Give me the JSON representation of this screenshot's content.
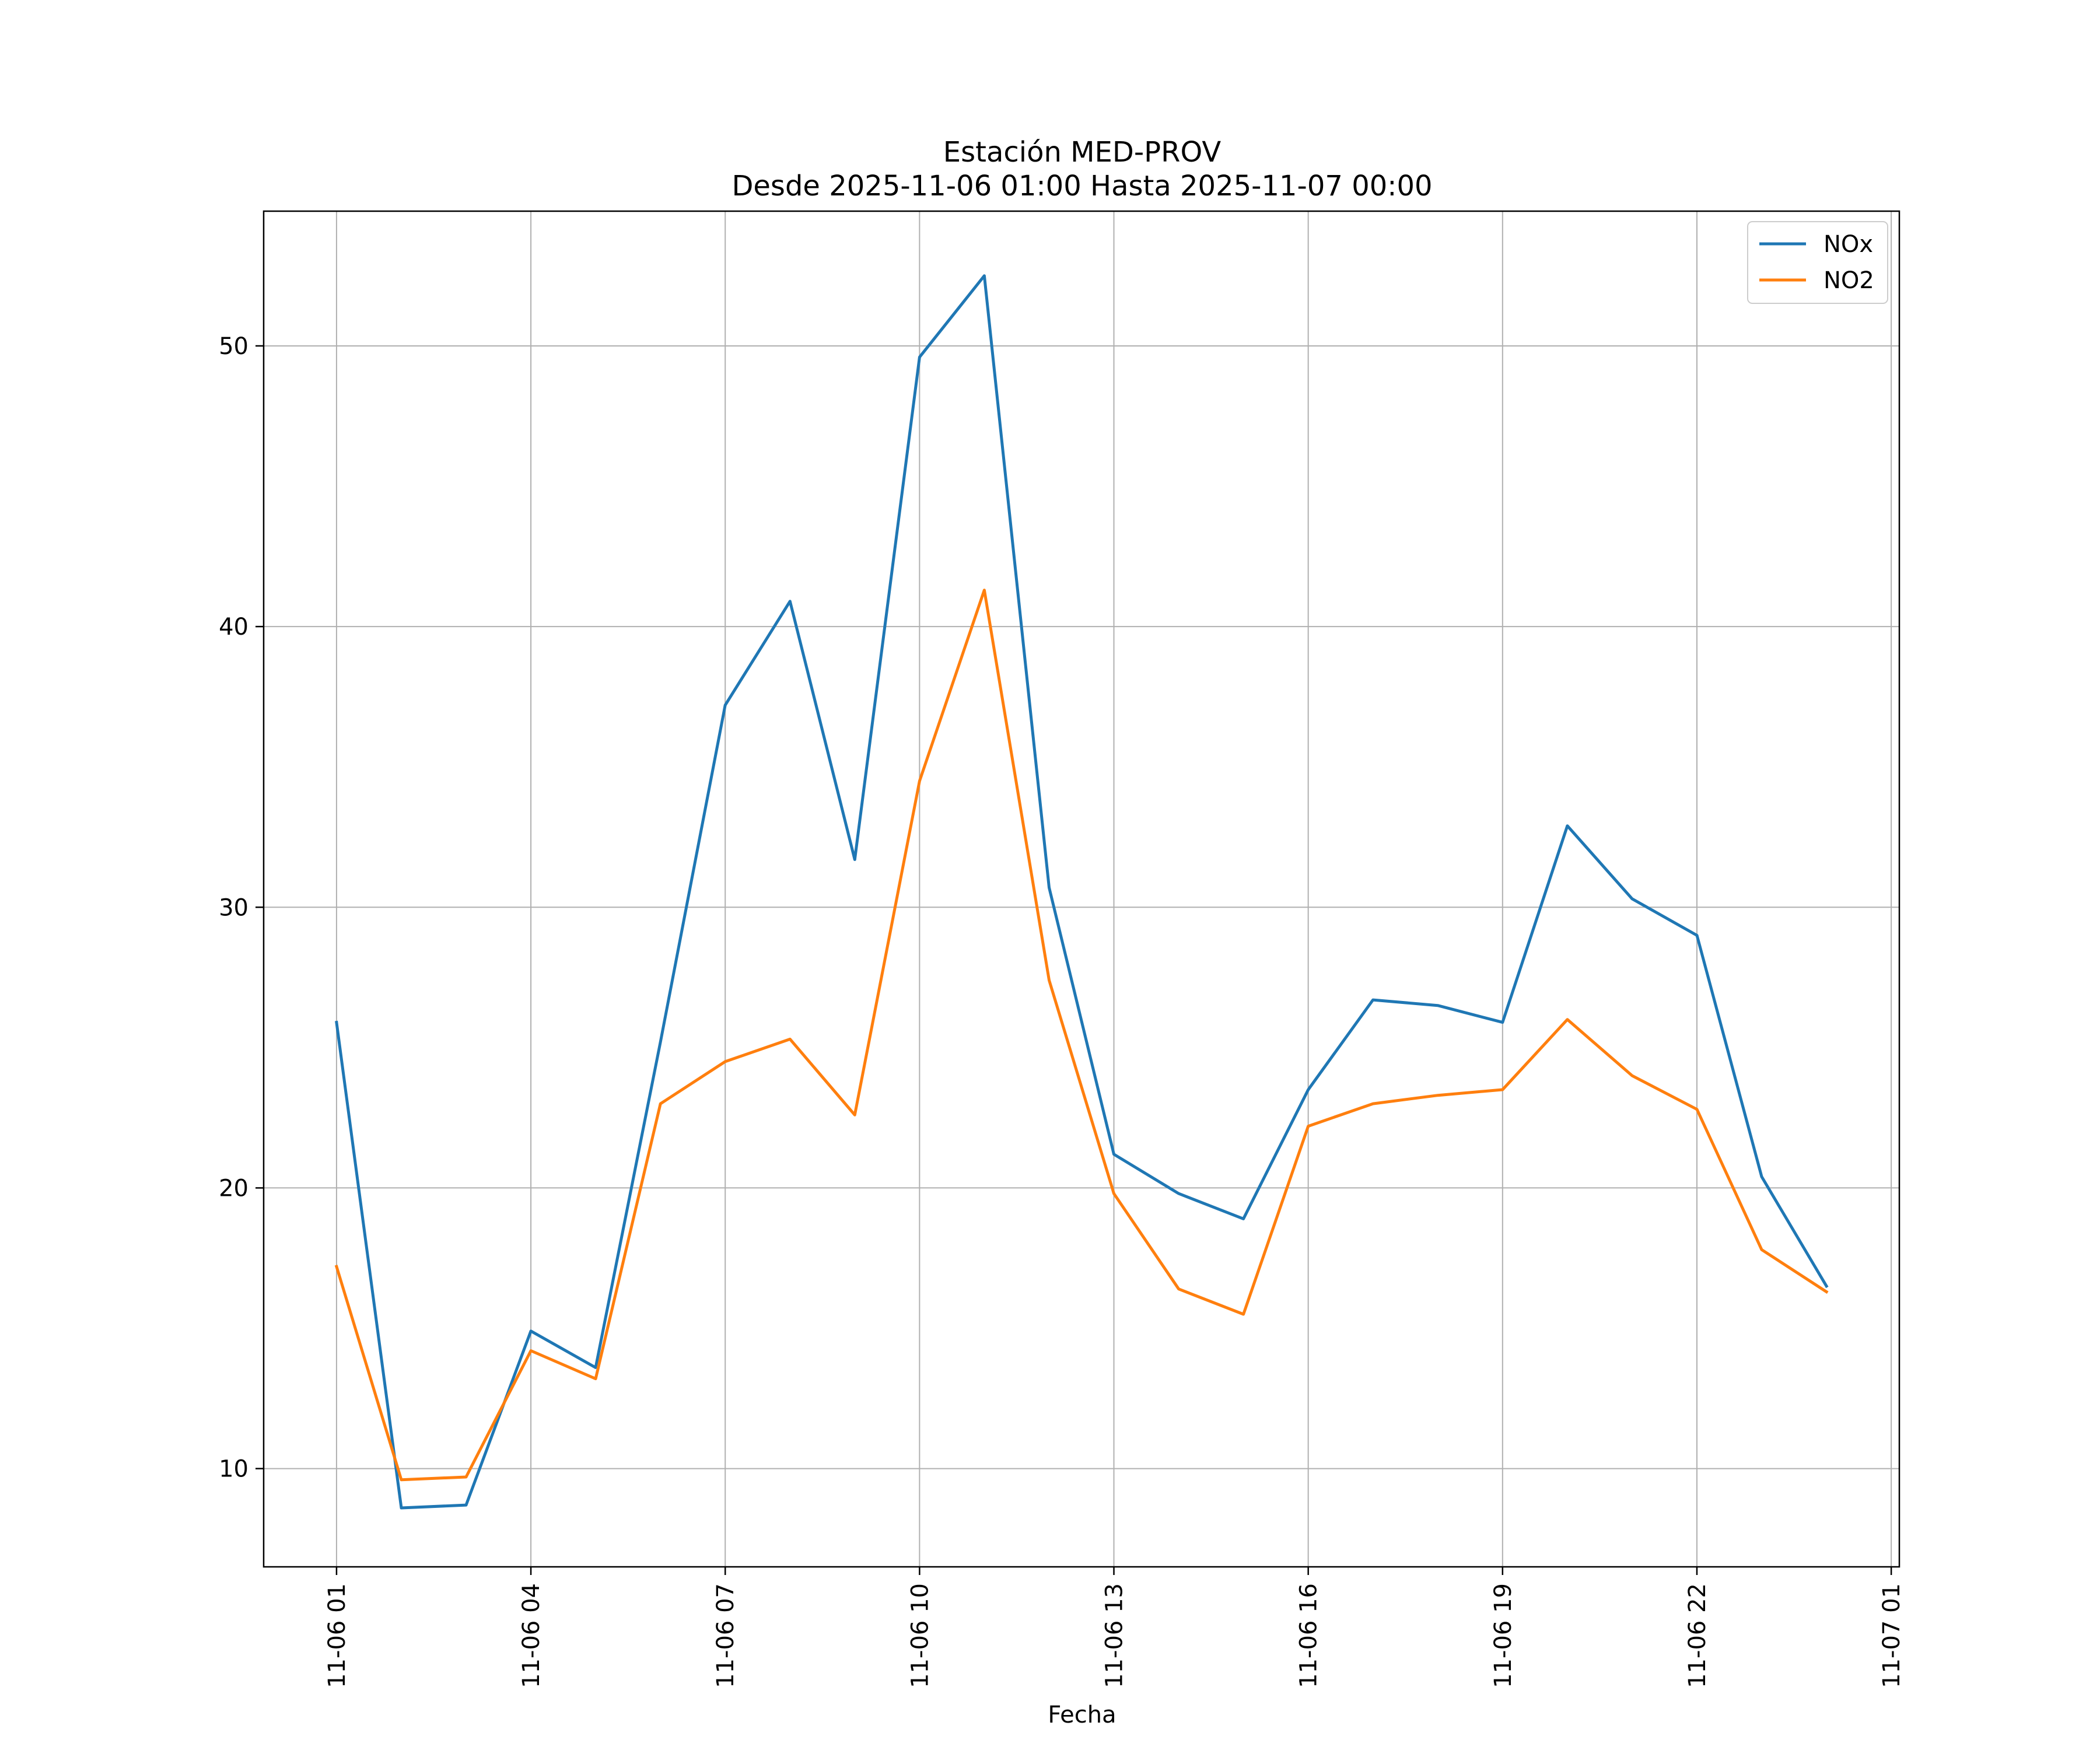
{
  "chart_data": {
    "type": "line",
    "title": "Estación MED-PROV",
    "subtitle": "Desde 2025-11-06 01:00 Hasta 2025-11-07 00:00",
    "xlabel": "Fecha",
    "ylabel": "",
    "x": [
      1,
      2,
      3,
      4,
      5,
      6,
      7,
      8,
      9,
      10,
      11,
      12,
      13,
      14,
      15,
      16,
      17,
      18,
      19,
      20,
      21,
      22,
      23,
      24
    ],
    "xlim": [
      -0.125,
      25.125
    ],
    "ylim": [
      6.5,
      54.8
    ],
    "grid": true,
    "legend": "top-right",
    "x_ticks": [
      {
        "value": 1,
        "label": "11-06 01"
      },
      {
        "value": 4,
        "label": "11-06 04"
      },
      {
        "value": 7,
        "label": "11-06 07"
      },
      {
        "value": 10,
        "label": "11-06 10"
      },
      {
        "value": 13,
        "label": "11-06 13"
      },
      {
        "value": 16,
        "label": "11-06 16"
      },
      {
        "value": 19,
        "label": "11-06 19"
      },
      {
        "value": 22,
        "label": "11-06 22"
      },
      {
        "value": 25,
        "label": "11-07 01"
      }
    ],
    "y_ticks": [
      {
        "value": 10,
        "label": "10"
      },
      {
        "value": 20,
        "label": "20"
      },
      {
        "value": 30,
        "label": "30"
      },
      {
        "value": 40,
        "label": "40"
      },
      {
        "value": 50,
        "label": "50"
      }
    ],
    "series": [
      {
        "name": "NOx",
        "color": "#1f77b4",
        "values": [
          25.9,
          8.6,
          8.7,
          14.9,
          13.6,
          25.2,
          37.2,
          40.9,
          31.7,
          49.6,
          52.5,
          30.7,
          21.2,
          19.8,
          18.9,
          23.5,
          26.7,
          26.5,
          25.9,
          32.9,
          30.3,
          29.0,
          20.4,
          16.5
        ]
      },
      {
        "name": "NO2",
        "color": "#ff7f0e",
        "values": [
          17.2,
          9.6,
          9.7,
          14.2,
          13.2,
          23.0,
          24.5,
          25.3,
          22.6,
          34.5,
          41.3,
          27.4,
          19.8,
          16.4,
          15.5,
          22.2,
          23.0,
          23.3,
          23.5,
          26.0,
          24.0,
          22.8,
          17.8,
          16.3
        ]
      }
    ]
  }
}
